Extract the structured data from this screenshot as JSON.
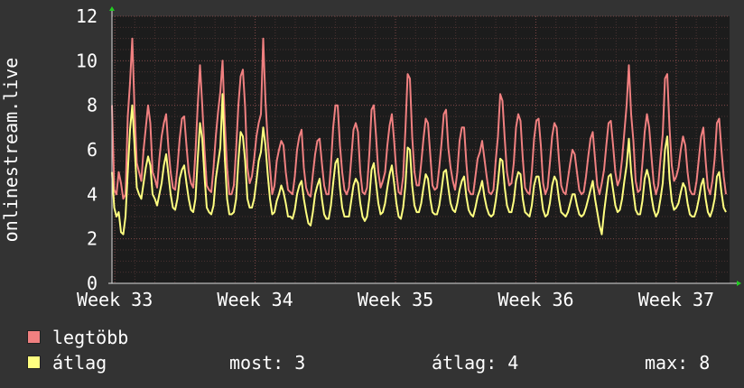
{
  "chart_data": {
    "type": "line",
    "ylabel": "onlinestream.live",
    "ylim": [
      0,
      12
    ],
    "yticks": [
      0,
      2,
      4,
      6,
      8,
      10,
      12
    ],
    "x_tick_labels": [
      "Week 33",
      "Week 34",
      "Week 35",
      "Week 36",
      "Week 37"
    ],
    "grid": true,
    "background": "#1c1c1c",
    "grid_color": "#5a3a3a",
    "series": [
      {
        "name": "legtöbb",
        "color": "#f08080",
        "values": [
          8,
          4.2,
          4,
          5,
          4.5,
          3.8,
          4,
          7.5,
          9,
          11,
          7.8,
          5.4,
          5,
          4.6,
          6,
          7,
          8,
          7.2,
          5,
          4.7,
          4.3,
          5.6,
          6.6,
          7.2,
          7.6,
          6.1,
          5,
          4.3,
          4.2,
          5.2,
          6.5,
          7.4,
          7.5,
          6.2,
          5,
          4.5,
          4.3,
          5.9,
          8,
          9.8,
          8,
          6,
          4.4,
          4.2,
          4.1,
          5.2,
          6.6,
          7.7,
          8.6,
          10,
          7.2,
          5.2,
          4,
          4,
          4.4,
          6,
          8,
          9.3,
          9.6,
          7.9,
          5.2,
          4.5,
          4.8,
          5.6,
          6.6,
          7.2,
          7.6,
          11,
          8.2,
          6.4,
          5.2,
          4,
          4.4,
          5.5,
          6,
          6.4,
          6.2,
          5,
          4.2,
          4.1,
          4,
          4.8,
          6,
          6.6,
          6.9,
          5.2,
          4.3,
          4,
          3.9,
          4.9,
          5.8,
          6.4,
          6.5,
          5.4,
          4.4,
          4,
          4,
          5.3,
          7,
          8,
          8,
          6.2,
          5,
          4.2,
          4,
          4.3,
          5.6,
          6.9,
          7.2,
          6.8,
          5,
          4.1,
          4,
          4.3,
          5.8,
          7.8,
          8,
          6.6,
          5,
          4.3,
          4.6,
          5,
          6.2,
          7.1,
          7.6,
          6.4,
          5,
          4.1,
          4,
          4.8,
          6.9,
          9.4,
          9.2,
          6.6,
          5,
          4.4,
          4.4,
          5.4,
          6.5,
          7.4,
          7.2,
          5.8,
          4.4,
          4.2,
          4.3,
          5.2,
          6.3,
          7.6,
          7.8,
          6.1,
          5.2,
          4.6,
          4.2,
          5,
          6.4,
          7,
          7,
          5.4,
          4.2,
          4,
          4,
          4.8,
          5.6,
          5.9,
          6.4,
          5.6,
          4.8,
          4.1,
          4,
          4.2,
          5.5,
          6.6,
          8.5,
          8.2,
          6.5,
          5,
          4.4,
          4.5,
          5.4,
          7,
          7.6,
          7.3,
          5.6,
          4.3,
          4.1,
          4,
          5,
          6.5,
          7.3,
          7.4,
          6.2,
          4.5,
          4,
          4.3,
          5.4,
          6.6,
          7.2,
          7,
          5.6,
          4.4,
          4.1,
          4,
          4.7,
          5.4,
          6,
          5.8,
          5,
          4.2,
          4,
          4.1,
          4.8,
          5.7,
          6.5,
          6.8,
          5.6,
          4.4,
          4,
          4.5,
          5.1,
          6.2,
          7.2,
          7.3,
          6.2,
          5,
          4.4,
          4.7,
          5.6,
          6.8,
          8,
          9.8,
          7.6,
          6.4,
          4.6,
          4.1,
          4.2,
          5.4,
          6.8,
          7.6,
          7,
          5.7,
          4.5,
          4,
          4.4,
          5.6,
          6.7,
          9.2,
          9.4,
          7,
          5.3,
          4.6,
          4.8,
          5.2,
          6,
          6.6,
          6.2,
          5,
          4.2,
          4,
          4,
          4.6,
          5.6,
          6.6,
          7,
          5.5,
          4.3,
          4,
          4.6,
          5.6,
          7.2,
          7.4,
          6,
          4.8,
          4
        ]
      },
      {
        "name": "átlag",
        "color": "#ffff80",
        "values": [
          5,
          3.4,
          3,
          3.2,
          2.3,
          2.2,
          3,
          5,
          6.9,
          8,
          6.2,
          4.3,
          4,
          3.8,
          4.5,
          5.2,
          5.7,
          5.3,
          4,
          3.8,
          3.5,
          4,
          4.5,
          5.3,
          5.8,
          4.9,
          4,
          3.4,
          3.3,
          3.8,
          4.7,
          5.1,
          5.3,
          4.5,
          3.8,
          3.3,
          3.2,
          3.8,
          5.6,
          7.2,
          6.5,
          4.8,
          3.4,
          3.2,
          3.1,
          3.5,
          4.7,
          5.4,
          6.1,
          8.5,
          5.6,
          3.8,
          3.1,
          3.1,
          3.2,
          3.8,
          5.5,
          6.8,
          6.6,
          5.5,
          3.8,
          3.4,
          3.4,
          3.8,
          4.6,
          5.5,
          5.9,
          7,
          6.2,
          4.9,
          3.8,
          3.1,
          3.2,
          3.7,
          4,
          4.4,
          4.1,
          3.6,
          3,
          3,
          2.9,
          3.3,
          4,
          4.4,
          4.6,
          3.8,
          3.2,
          2.7,
          2.6,
          3.2,
          4,
          4.4,
          4.7,
          3.8,
          3.1,
          2.9,
          2.9,
          3.5,
          4.5,
          5.4,
          5.6,
          4.3,
          3.4,
          3,
          3,
          3,
          3.7,
          4.4,
          4.7,
          4.5,
          3.6,
          3,
          2.8,
          3,
          3.8,
          5.1,
          5.4,
          4.5,
          3.6,
          3.1,
          3.2,
          3.6,
          4.3,
          4.9,
          5.3,
          4.5,
          3.6,
          3,
          2.9,
          3.4,
          4.4,
          6.1,
          6,
          4.4,
          3.5,
          3.2,
          3.2,
          3.6,
          4.3,
          4.9,
          4.7,
          3.8,
          3.2,
          3.1,
          3.1,
          3.5,
          4.2,
          5,
          5.1,
          4.3,
          3.6,
          3.3,
          3.2,
          3.6,
          4.2,
          4.6,
          4.8,
          3.9,
          3.3,
          3.1,
          3,
          3.4,
          3.9,
          4.2,
          4.6,
          3.9,
          3.4,
          3.1,
          3,
          3.1,
          3.7,
          4.5,
          5.6,
          5.5,
          4.3,
          3.5,
          3.2,
          3.2,
          3.7,
          4.6,
          5,
          4.9,
          3.8,
          3.2,
          3.1,
          3,
          3.5,
          4.4,
          4.8,
          4.8,
          4.1,
          3.3,
          3,
          3.1,
          3.6,
          4.4,
          4.8,
          4.6,
          3.8,
          3.2,
          3.1,
          3,
          3.2,
          3.6,
          4,
          4,
          3.5,
          3.1,
          3,
          3.1,
          3.4,
          3.8,
          4.2,
          4.6,
          3.8,
          3.2,
          2.6,
          2.2,
          3.2,
          4,
          4.8,
          4.9,
          4.2,
          3.5,
          3.2,
          3.3,
          3.8,
          4.6,
          5.3,
          6.5,
          5,
          4.1,
          3.3,
          3.1,
          3.1,
          3.7,
          4.7,
          5.1,
          4.7,
          3.9,
          3.3,
          3,
          3.2,
          3.8,
          4.5,
          6,
          6.6,
          4.7,
          3.7,
          3.3,
          3.4,
          3.6,
          4.1,
          4.5,
          4.3,
          3.6,
          3.1,
          3,
          3,
          3.3,
          3.8,
          4.4,
          4.7,
          3.8,
          3.2,
          3,
          3.3,
          3.8,
          4.8,
          5,
          4.1,
          3.4,
          3.2
        ]
      }
    ]
  },
  "legend": {
    "items": [
      {
        "name": "legtöbb",
        "color": "#f08080"
      },
      {
        "name": "átlag",
        "color": "#ffff80"
      }
    ],
    "stats": {
      "most": "most: 3",
      "avg": "átlag: 4",
      "max": "max: 8"
    }
  }
}
